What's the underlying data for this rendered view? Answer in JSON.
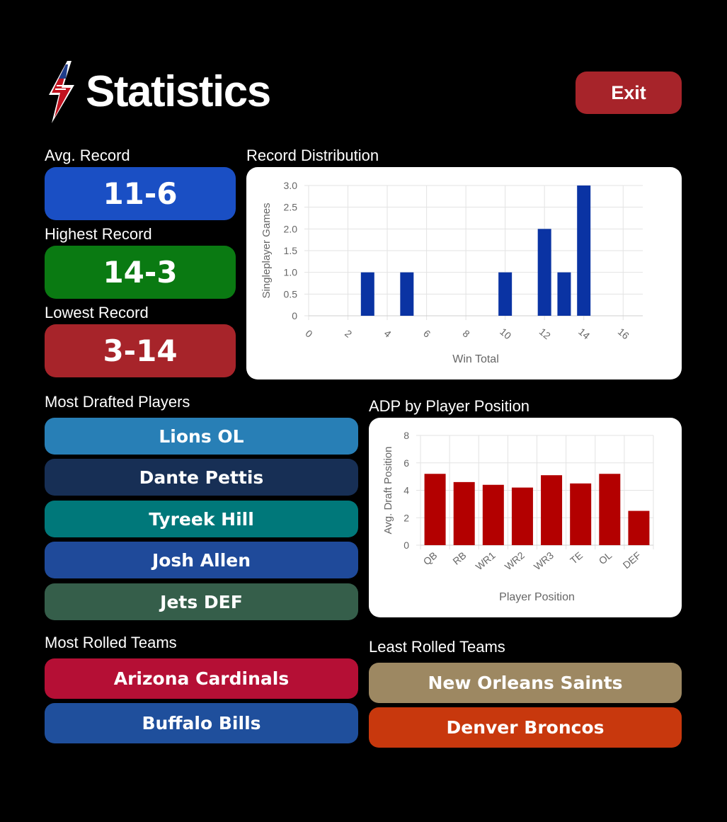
{
  "header": {
    "title": "Statistics",
    "exit_label": "Exit"
  },
  "records": {
    "avg": {
      "label": "Avg. Record",
      "value": "11-6",
      "color": "#1a4fc4"
    },
    "highest": {
      "label": "Highest Record",
      "value": "14-3",
      "color": "#0a7a12"
    },
    "lowest": {
      "label": "Lowest Record",
      "value": "3-14",
      "color": "#a7242a"
    }
  },
  "record_distribution": {
    "label": "Record Distribution"
  },
  "adp": {
    "label": "ADP by Player Position"
  },
  "most_drafted": {
    "label": "Most Drafted Players",
    "players": [
      {
        "name": "Lions OL",
        "color": "#287fb6"
      },
      {
        "name": "Dante Pettis",
        "color": "#172f55"
      },
      {
        "name": "Tyreek Hill",
        "color": "#00787a"
      },
      {
        "name": "Josh Allen",
        "color": "#1f4a9a"
      },
      {
        "name": "Jets DEF",
        "color": "#355e4a"
      }
    ]
  },
  "most_rolled": {
    "label": "Most Rolled Teams",
    "teams": [
      {
        "name": "Arizona Cardinals",
        "color": "#b50f35"
      },
      {
        "name": "Buffalo Bills",
        "color": "#1f4f9c"
      }
    ]
  },
  "least_rolled": {
    "label": "Least Rolled Teams",
    "teams": [
      {
        "name": "New Orleans Saints",
        "color": "#9d8862"
      },
      {
        "name": "Denver Broncos",
        "color": "#c8380d"
      }
    ]
  },
  "chart_data": [
    {
      "type": "bar",
      "xlabel": "Win Total",
      "ylabel": "Singleplayer Games",
      "x_ticks": [
        "0",
        "2",
        "4",
        "6",
        "8",
        "10",
        "12",
        "14",
        "16"
      ],
      "x": [
        3,
        5,
        10,
        12,
        13,
        14
      ],
      "values": [
        1,
        1,
        1,
        2,
        1,
        3
      ],
      "ylim": [
        0,
        3
      ],
      "y_ticks": [
        "0",
        "0.5",
        "1.0",
        "1.5",
        "2.0",
        "2.5",
        "3.0"
      ],
      "grid": true,
      "color": "#0a33a3"
    },
    {
      "type": "bar",
      "xlabel": "Player Position",
      "ylabel": "Avg. Draft Position",
      "categories": [
        "QB",
        "RB",
        "WR1",
        "WR2",
        "WR3",
        "TE",
        "OL",
        "DEF"
      ],
      "values": [
        5.2,
        4.6,
        4.4,
        4.2,
        5.1,
        4.5,
        5.2,
        2.5
      ],
      "ylim": [
        0,
        8
      ],
      "y_ticks": [
        "0",
        "2",
        "4",
        "6",
        "8"
      ],
      "grid": true,
      "color": "#b30000"
    }
  ]
}
